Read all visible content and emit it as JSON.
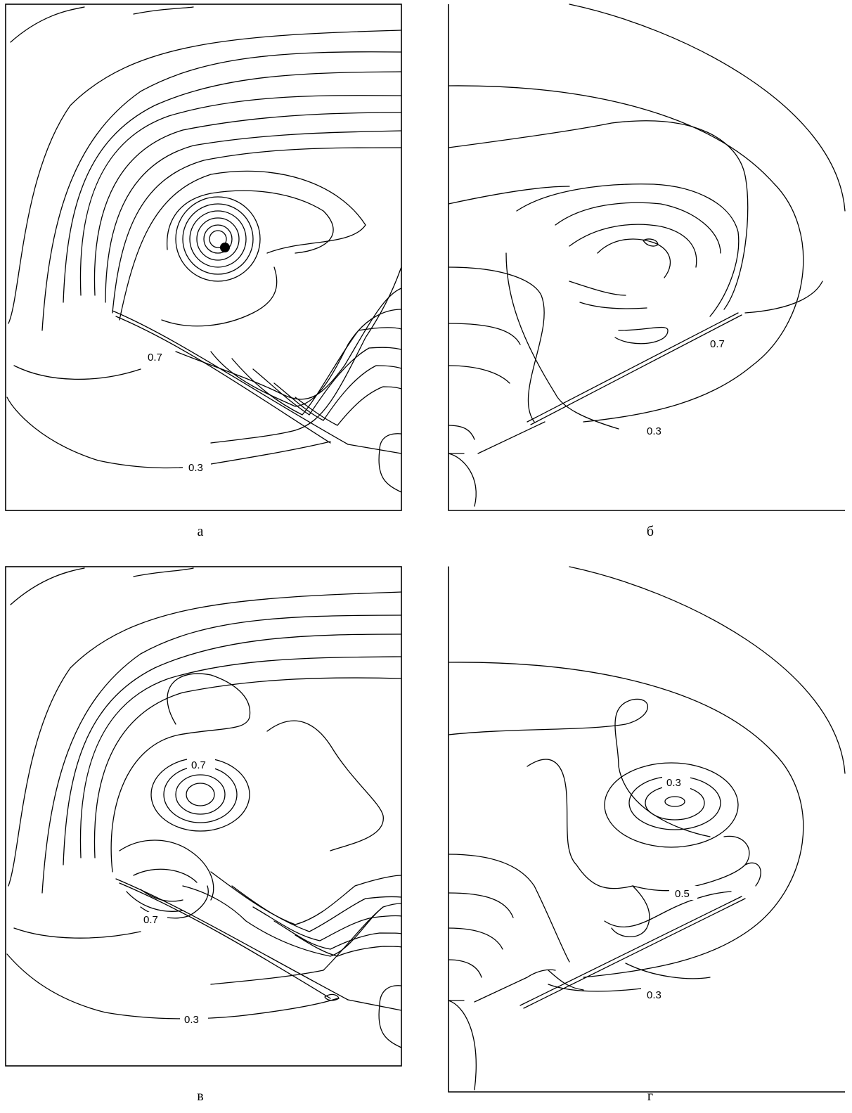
{
  "panels": [
    {
      "caption": "а",
      "labels": [
        "0.7",
        "0.3"
      ]
    },
    {
      "caption": "б",
      "labels": [
        "0.7",
        "0.3"
      ]
    },
    {
      "caption": "в",
      "labels": [
        "0.7",
        "0.7",
        "0.3"
      ]
    },
    {
      "caption": "г",
      "labels": [
        "0.3",
        "0.5",
        "0.3"
      ]
    }
  ]
}
